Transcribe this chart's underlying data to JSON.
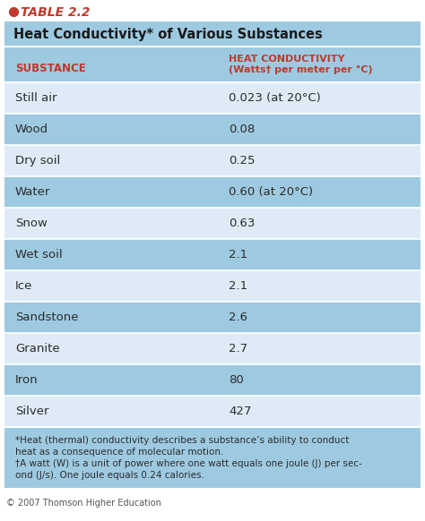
{
  "table_label": "TABLE 2.2",
  "title": "Heat Conductivity* of Various Substances",
  "col1_header": "SUBSTANCE",
  "col2_header_line1": "HEAT CONDUCTIVITY",
  "col2_header_line2": "(Watts† per meter per °C)",
  "rows": [
    [
      "Still air",
      "0.023 (at 20°C)"
    ],
    [
      "Wood",
      "0.08"
    ],
    [
      "Dry soil",
      "0.25"
    ],
    [
      "Water",
      "0.60 (at 20°C)"
    ],
    [
      "Snow",
      "0.63"
    ],
    [
      "Wet soil",
      "2.1"
    ],
    [
      "Ice",
      "2.1"
    ],
    [
      "Sandstone",
      "2.6"
    ],
    [
      "Granite",
      "2.7"
    ],
    [
      "Iron",
      "80"
    ],
    [
      "Silver",
      "427"
    ]
  ],
  "footnote_lines": [
    "*Heat (thermal) conductivity describes a substance’s ability to conduct",
    "heat as a consequence of molecular motion.",
    "†A watt (W) is a unit of power where one watt equals one joule (J) per sec-",
    "ond (J/s). One joule equals 0.24 calories."
  ],
  "copyright": "© 2007 Thomson Higher Education",
  "bg_color": "#9ecae1",
  "row_light": "#deebf7",
  "row_dark": "#9ecae1",
  "header_bg": "#9ecae1",
  "title_bg": "#9ecae1",
  "label_bg": "#ffffff",
  "header_color": "#c0392b",
  "title_color": "#1a1a1a",
  "label_color": "#c0392b",
  "text_color": "#2b2b2b",
  "bullet_color": "#c0392b",
  "outer_bg": "#ffffff",
  "footnote_bg": "#9ecae1",
  "separator_color": "#ffffff"
}
